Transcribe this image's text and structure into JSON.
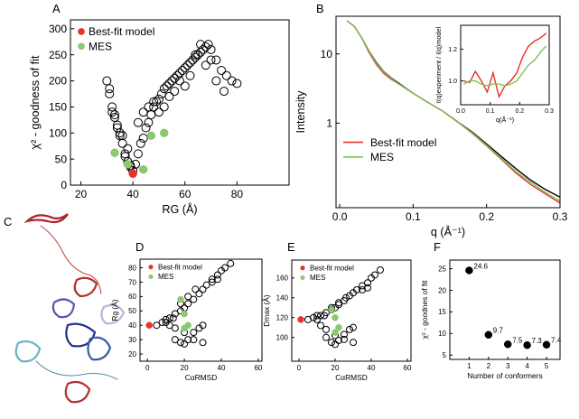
{
  "chart_data": [
    {
      "type": "scatter",
      "label": "A",
      "xlabel": "RG (Å)",
      "ylabel": "χ² - goodness of fit",
      "xlim": [
        16,
        100
      ],
      "ylim": [
        0,
        317
      ],
      "xticks": [
        20,
        40,
        60,
        80
      ],
      "yticks": [
        0,
        50,
        100,
        150,
        200,
        250,
        300
      ],
      "legend": "upper left",
      "series": [
        {
          "color": "#000000",
          "marker": "open",
          "x": [
            30,
            31,
            32,
            33,
            34,
            35,
            36,
            37,
            38,
            39,
            40,
            41,
            42,
            43,
            44,
            45,
            46,
            47,
            48,
            49,
            50,
            51,
            52,
            53,
            54,
            55,
            56,
            57,
            58,
            59,
            60,
            61,
            62,
            63,
            64,
            65,
            66,
            67,
            68,
            69,
            70,
            72,
            74,
            76,
            78,
            80,
            32,
            34,
            36,
            38,
            42,
            44,
            46,
            48,
            50,
            52,
            54,
            56,
            58,
            60,
            62,
            64,
            66,
            68,
            70,
            72,
            75,
            31,
            33,
            35,
            37,
            39
          ],
          "values": [
            200,
            175,
            150,
            130,
            110,
            95,
            80,
            60,
            45,
            35,
            28,
            40,
            60,
            80,
            90,
            110,
            120,
            135,
            150,
            160,
            165,
            175,
            185,
            190,
            195,
            200,
            205,
            210,
            215,
            220,
            225,
            230,
            235,
            240,
            245,
            250,
            255,
            260,
            265,
            270,
            260,
            240,
            220,
            210,
            200,
            195,
            140,
            115,
            95,
            70,
            120,
            140,
            150,
            160,
            140,
            150,
            170,
            180,
            200,
            190,
            210,
            250,
            270,
            230,
            240,
            200,
            180,
            185,
            135,
            100,
            55,
            38
          ]
        },
        {
          "name": "Best-fit model",
          "color": "#e8312a",
          "marker": "filled",
          "x": [
            40
          ],
          "values": [
            22
          ]
        },
        {
          "name": "MES",
          "color": "#8bc870",
          "marker": "filled",
          "x": [
            33,
            38,
            44,
            47,
            52
          ],
          "values": [
            62,
            40,
            30,
            95,
            100
          ]
        }
      ]
    },
    {
      "type": "line",
      "label": "B",
      "xlabel": "q (Å⁻¹)",
      "ylabel": "Intensity",
      "log_y": true,
      "xlim": [
        -0.005,
        0.3
      ],
      "ylim": [
        0.06,
        35
      ],
      "xticks": [
        {
          "value": 0,
          "label": "0.0"
        },
        0.1,
        0.2,
        0.3
      ],
      "yticks": [
        1,
        10
      ],
      "legend": "lower left",
      "series": [
        {
          "color": "#000000",
          "x": [
            0.01,
            0.02,
            0.03,
            0.04,
            0.05,
            0.06,
            0.07,
            0.08,
            0.1,
            0.12,
            0.14,
            0.16,
            0.18,
            0.2,
            0.22,
            0.24,
            0.26,
            0.28,
            0.3
          ],
          "values": [
            30,
            25,
            17,
            11,
            7.5,
            5.5,
            4.5,
            3.8,
            2.7,
            2.0,
            1.5,
            1.05,
            0.75,
            0.5,
            0.33,
            0.22,
            0.15,
            0.11,
            0.085
          ]
        },
        {
          "name": "Best-fit model",
          "color": "#e8312a",
          "x": [
            0.01,
            0.02,
            0.03,
            0.04,
            0.05,
            0.06,
            0.07,
            0.08,
            0.1,
            0.12,
            0.14,
            0.16,
            0.18,
            0.2,
            0.22,
            0.24,
            0.26,
            0.28,
            0.3
          ],
          "values": [
            30,
            25,
            17,
            10.5,
            7,
            5.2,
            4.3,
            3.7,
            2.7,
            2.0,
            1.5,
            1.05,
            0.72,
            0.47,
            0.3,
            0.19,
            0.13,
            0.095,
            0.07
          ]
        },
        {
          "name": "MES",
          "color": "#7cc35a",
          "x": [
            0.01,
            0.02,
            0.03,
            0.04,
            0.05,
            0.06,
            0.07,
            0.08,
            0.1,
            0.12,
            0.14,
            0.16,
            0.18,
            0.2,
            0.22,
            0.24,
            0.26,
            0.28,
            0.3
          ],
          "values": [
            30,
            25,
            17,
            11,
            7.3,
            5.4,
            4.4,
            3.7,
            2.7,
            2.0,
            1.5,
            1.04,
            0.73,
            0.48,
            0.31,
            0.2,
            0.14,
            0.1,
            0.075
          ]
        }
      ],
      "inset": {
        "type": "line",
        "xlabel": "q(Å⁻¹)",
        "ylabel": "I(q)experiment / I(q)model",
        "xlim": [
          0,
          0.3
        ],
        "ylim": [
          0.85,
          1.35
        ],
        "xticks": [
          {
            "value": 0,
            "label": "0.0"
          },
          0.1,
          0.2,
          0.3
        ],
        "yticks": [
          {
            "value": 1,
            "label": "1.0"
          },
          1.2
        ],
        "series": [
          {
            "color": "#e8312a",
            "x": [
              0.01,
              0.03,
              0.05,
              0.07,
              0.09,
              0.11,
              0.13,
              0.15,
              0.17,
              0.19,
              0.21,
              0.23,
              0.25,
              0.27,
              0.29
            ],
            "values": [
              1.0,
              0.99,
              1.06,
              1.0,
              0.93,
              1.05,
              0.9,
              0.97,
              1.0,
              1.05,
              1.15,
              1.22,
              1.25,
              1.27,
              1.3
            ]
          },
          {
            "color": "#7cc35a",
            "x": [
              0.01,
              0.03,
              0.05,
              0.07,
              0.09,
              0.11,
              0.13,
              0.15,
              0.17,
              0.19,
              0.21,
              0.23,
              0.25,
              0.27,
              0.29
            ],
            "values": [
              0.98,
              1.0,
              1.0,
              0.98,
              0.97,
              0.98,
              0.98,
              0.97,
              0.98,
              1.0,
              1.05,
              1.1,
              1.13,
              1.18,
              1.22
            ]
          }
        ]
      }
    },
    {
      "type": "scatter",
      "label": "D",
      "xlabel": "CαRMSD",
      "ylabel": "Rg (Å)",
      "xlim": [
        -4,
        62
      ],
      "ylim": [
        15,
        86
      ],
      "xticks": [
        0,
        20,
        40,
        60
      ],
      "yticks": [
        20,
        30,
        40,
        50,
        60,
        70,
        80
      ],
      "legend": "upper left",
      "series": [
        {
          "color": "#000000",
          "marker": "open",
          "x": [
            5,
            8,
            10,
            12,
            15,
            18,
            20,
            22,
            25,
            28,
            30,
            32,
            35,
            38,
            40,
            42,
            45,
            15,
            18,
            20,
            22,
            25,
            28,
            30,
            12,
            15,
            20,
            25,
            30,
            10,
            14,
            18,
            22,
            26,
            35,
            38
          ],
          "values": [
            40,
            42,
            44,
            45,
            48,
            50,
            52,
            55,
            58,
            62,
            65,
            68,
            72,
            75,
            78,
            80,
            83,
            30,
            28,
            27,
            30,
            35,
            38,
            40,
            40,
            38,
            35,
            30,
            28,
            42,
            45,
            55,
            60,
            65,
            70,
            72
          ]
        },
        {
          "name": "Best-fit model",
          "color": "#e8312a",
          "marker": "filled",
          "x": [
            1
          ],
          "values": [
            40
          ]
        },
        {
          "name": "MES",
          "color": "#8bc870",
          "marker": "filled",
          "x": [
            18,
            20,
            22,
            20
          ],
          "values": [
            58,
            48,
            40,
            38
          ]
        }
      ]
    },
    {
      "type": "scatter",
      "label": "E",
      "xlabel": "CαRMSD",
      "ylabel": "Dmax (Å)",
      "xlim": [
        -4,
        62
      ],
      "ylim": [
        76,
        178
      ],
      "xticks": [
        0,
        20,
        40,
        60
      ],
      "yticks": [
        100,
        120,
        140,
        160
      ],
      "legend": "upper left",
      "series": [
        {
          "color": "#000000",
          "marker": "open",
          "x": [
            5,
            8,
            10,
            12,
            15,
            18,
            20,
            22,
            25,
            28,
            30,
            32,
            35,
            38,
            40,
            42,
            45,
            15,
            18,
            20,
            22,
            25,
            28,
            30,
            12,
            15,
            20,
            25,
            30,
            10,
            14,
            18,
            22,
            26,
            35,
            38
          ],
          "values": [
            118,
            120,
            122,
            122,
            125,
            128,
            130,
            133,
            137,
            142,
            145,
            148,
            152,
            155,
            160,
            163,
            168,
            100,
            95,
            93,
            97,
            103,
            108,
            110,
            112,
            108,
            102,
            98,
            95,
            118,
            122,
            130,
            135,
            140,
            148,
            150
          ]
        },
        {
          "name": "Best-fit model",
          "color": "#e8312a",
          "marker": "filled",
          "x": [
            1
          ],
          "values": [
            118
          ]
        },
        {
          "name": "MES",
          "color": "#8bc870",
          "marker": "filled",
          "x": [
            18,
            20,
            22,
            20
          ],
          "values": [
            128,
            120,
            110,
            105
          ]
        }
      ]
    },
    {
      "type": "scatter",
      "label": "F",
      "xlabel": "Number of conformers",
      "ylabel": "χ² - goodnes of fit",
      "xlim": [
        0,
        5.7
      ],
      "ylim": [
        4,
        27
      ],
      "xticks": [
        1,
        2,
        3,
        4,
        5
      ],
      "yticks": [
        5,
        10,
        15,
        20,
        25
      ],
      "series": [
        {
          "color": "#000000",
          "marker": "filled",
          "show_values": true,
          "x": [
            1,
            2,
            3,
            4,
            5
          ],
          "values": [
            24.6,
            9.7,
            7.5,
            7.3,
            7.4
          ]
        }
      ]
    }
  ],
  "image_panel": {
    "label": "C"
  }
}
